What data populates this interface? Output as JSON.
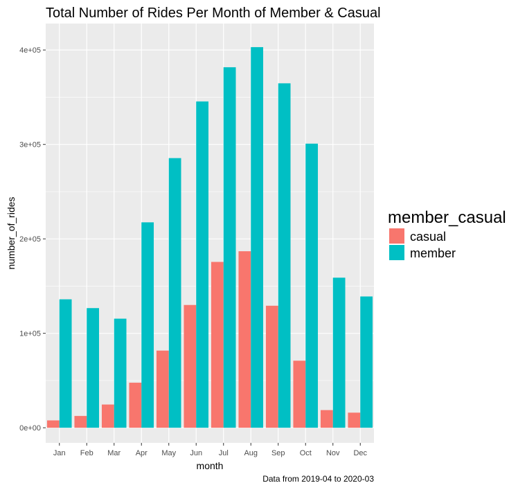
{
  "chart_data": {
    "type": "bar",
    "title": "Total Number of Rides Per Month of Member & Casual",
    "xlabel": "month",
    "ylabel": "number_of_rides",
    "caption": "Data from 2019-04 to 2020-03",
    "categories": [
      "Jan",
      "Feb",
      "Mar",
      "Apr",
      "May",
      "Jun",
      "Jul",
      "Aug",
      "Sep",
      "Oct",
      "Nov",
      "Dec"
    ],
    "ylim": [
      -16000,
      428000
    ],
    "yticks": [
      0,
      100000,
      200000,
      300000,
      400000
    ],
    "ytick_labels": [
      "0e+00",
      "1e+05",
      "2e+05",
      "3e+05",
      "4e+05"
    ],
    "grid": true,
    "background_color": "#ebebeb",
    "legend": {
      "title": "member_casual",
      "position": "right"
    },
    "series": [
      {
        "name": "casual",
        "color": "#f8766d",
        "values": [
          7800,
          12500,
          24600,
          47700,
          81700,
          130000,
          175600,
          186900,
          129200,
          71000,
          18700,
          16000
        ]
      },
      {
        "name": "member",
        "color": "#00bfc4",
        "values": [
          136000,
          126700,
          115500,
          217500,
          285500,
          345500,
          381700,
          403000,
          364700,
          300800,
          158900,
          139000
        ]
      }
    ]
  }
}
